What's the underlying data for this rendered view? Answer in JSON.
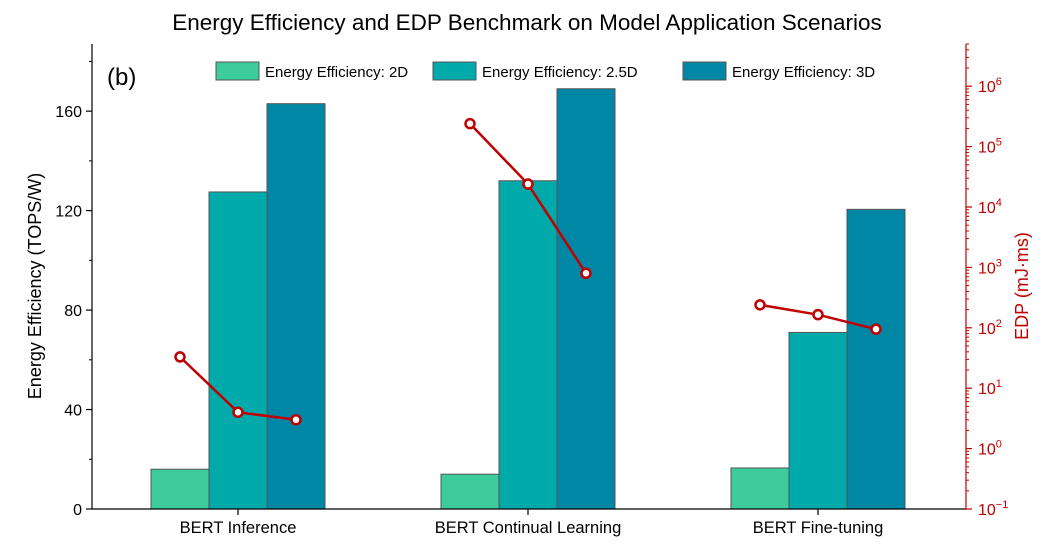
{
  "chart_data": {
    "type": "bar",
    "title": "Energy Efficiency and EDP Benchmark on Model Application Scenarios",
    "panel_label": "(b)",
    "categories": [
      "BERT Inference",
      "BERT Continual Learning",
      "BERT Fine-tuning"
    ],
    "series": [
      {
        "name": "Energy Efficiency: 2D",
        "color": "#3ccc9c",
        "values": [
          16,
          14,
          16.5
        ]
      },
      {
        "name": "Energy Efficiency: 2.5D",
        "color": "#00aaaa",
        "values": [
          127.5,
          132,
          71
        ]
      },
      {
        "name": "Energy Efficiency: 3D",
        "color": "#0087a6",
        "values": [
          163,
          169,
          120.5
        ]
      }
    ],
    "ylabel": "Energy Efficiency (TOPS/W)",
    "ylim": [
      0,
      187
    ],
    "yticks": [
      0,
      40,
      80,
      120,
      160
    ],
    "y2": {
      "label": "EDP (mJ·ms)",
      "scale": "log",
      "range": [
        0.1,
        5000000
      ],
      "color": "#c00000",
      "ticks": [
        {
          "value": 0.1,
          "base": "10",
          "exp": "−1"
        },
        {
          "value": 1,
          "base": "10",
          "exp": "0"
        },
        {
          "value": 10,
          "base": "10",
          "exp": "1"
        },
        {
          "value": 100,
          "base": "10",
          "exp": "2"
        },
        {
          "value": 1000,
          "base": "10",
          "exp": "3"
        },
        {
          "value": 10000,
          "base": "10",
          "exp": "4"
        },
        {
          "value": 100000,
          "base": "10",
          "exp": "5"
        },
        {
          "value": 1000000,
          "base": "10",
          "exp": "6"
        }
      ]
    },
    "edp_series": [
      {
        "category": "BERT Inference",
        "values": [
          33,
          4,
          3
        ]
      },
      {
        "category": "BERT Continual Learning",
        "values": [
          240000,
          24000,
          800
        ]
      },
      {
        "category": "BERT Fine-tuning",
        "values": [
          240,
          165,
          95
        ]
      }
    ],
    "legend_position": "top"
  }
}
